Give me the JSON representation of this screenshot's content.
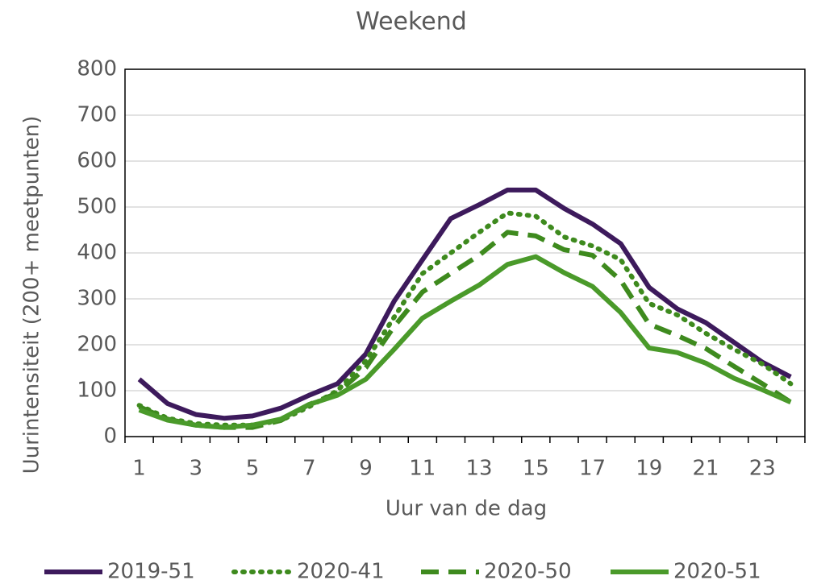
{
  "chart_data": {
    "type": "line",
    "title": "Weekend",
    "x_label": "Uur van de dag",
    "y_label": "Uurintensiteit (200+ meetpunten)",
    "categories": [
      "1",
      null,
      "3",
      null,
      "5",
      null,
      "7",
      null,
      "9",
      null,
      "11",
      null,
      "13",
      null,
      "15",
      null,
      "17",
      null,
      "19",
      null,
      "21",
      null,
      "23",
      null
    ],
    "series": [
      {
        "name": "2019-51",
        "color": "#3d1a5c",
        "dash": "solid",
        "values": [
          125,
          72,
          48,
          40,
          45,
          62,
          90,
          115,
          180,
          295,
          385,
          475,
          505,
          537,
          537,
          497,
          463,
          420,
          325,
          278,
          248,
          205,
          162,
          130
        ]
      },
      {
        "name": "2020-41",
        "color": "#3e8a1e",
        "dash": "dotted",
        "values": [
          68,
          40,
          28,
          25,
          25,
          35,
          65,
          100,
          165,
          260,
          355,
          400,
          445,
          487,
          480,
          435,
          415,
          385,
          290,
          265,
          225,
          190,
          158,
          115
        ]
      },
      {
        "name": "2020-50",
        "color": "#3e8a1e",
        "dash": "dashed",
        "values": [
          65,
          38,
          25,
          20,
          20,
          35,
          70,
          95,
          150,
          240,
          315,
          355,
          395,
          445,
          437,
          407,
          395,
          340,
          245,
          220,
          192,
          153,
          115,
          75
        ]
      },
      {
        "name": "2020-51",
        "color": "#4a9a2a",
        "dash": "solid",
        "values": [
          58,
          36,
          25,
          20,
          25,
          38,
          70,
          90,
          125,
          190,
          258,
          295,
          330,
          375,
          392,
          357,
          327,
          270,
          193,
          183,
          160,
          127,
          102,
          75
        ]
      }
    ],
    "ylim": [
      0,
      800
    ],
    "yticks": [
      0,
      100,
      200,
      300,
      400,
      500,
      600,
      700,
      800
    ],
    "grid": true,
    "legend": "bottom"
  }
}
